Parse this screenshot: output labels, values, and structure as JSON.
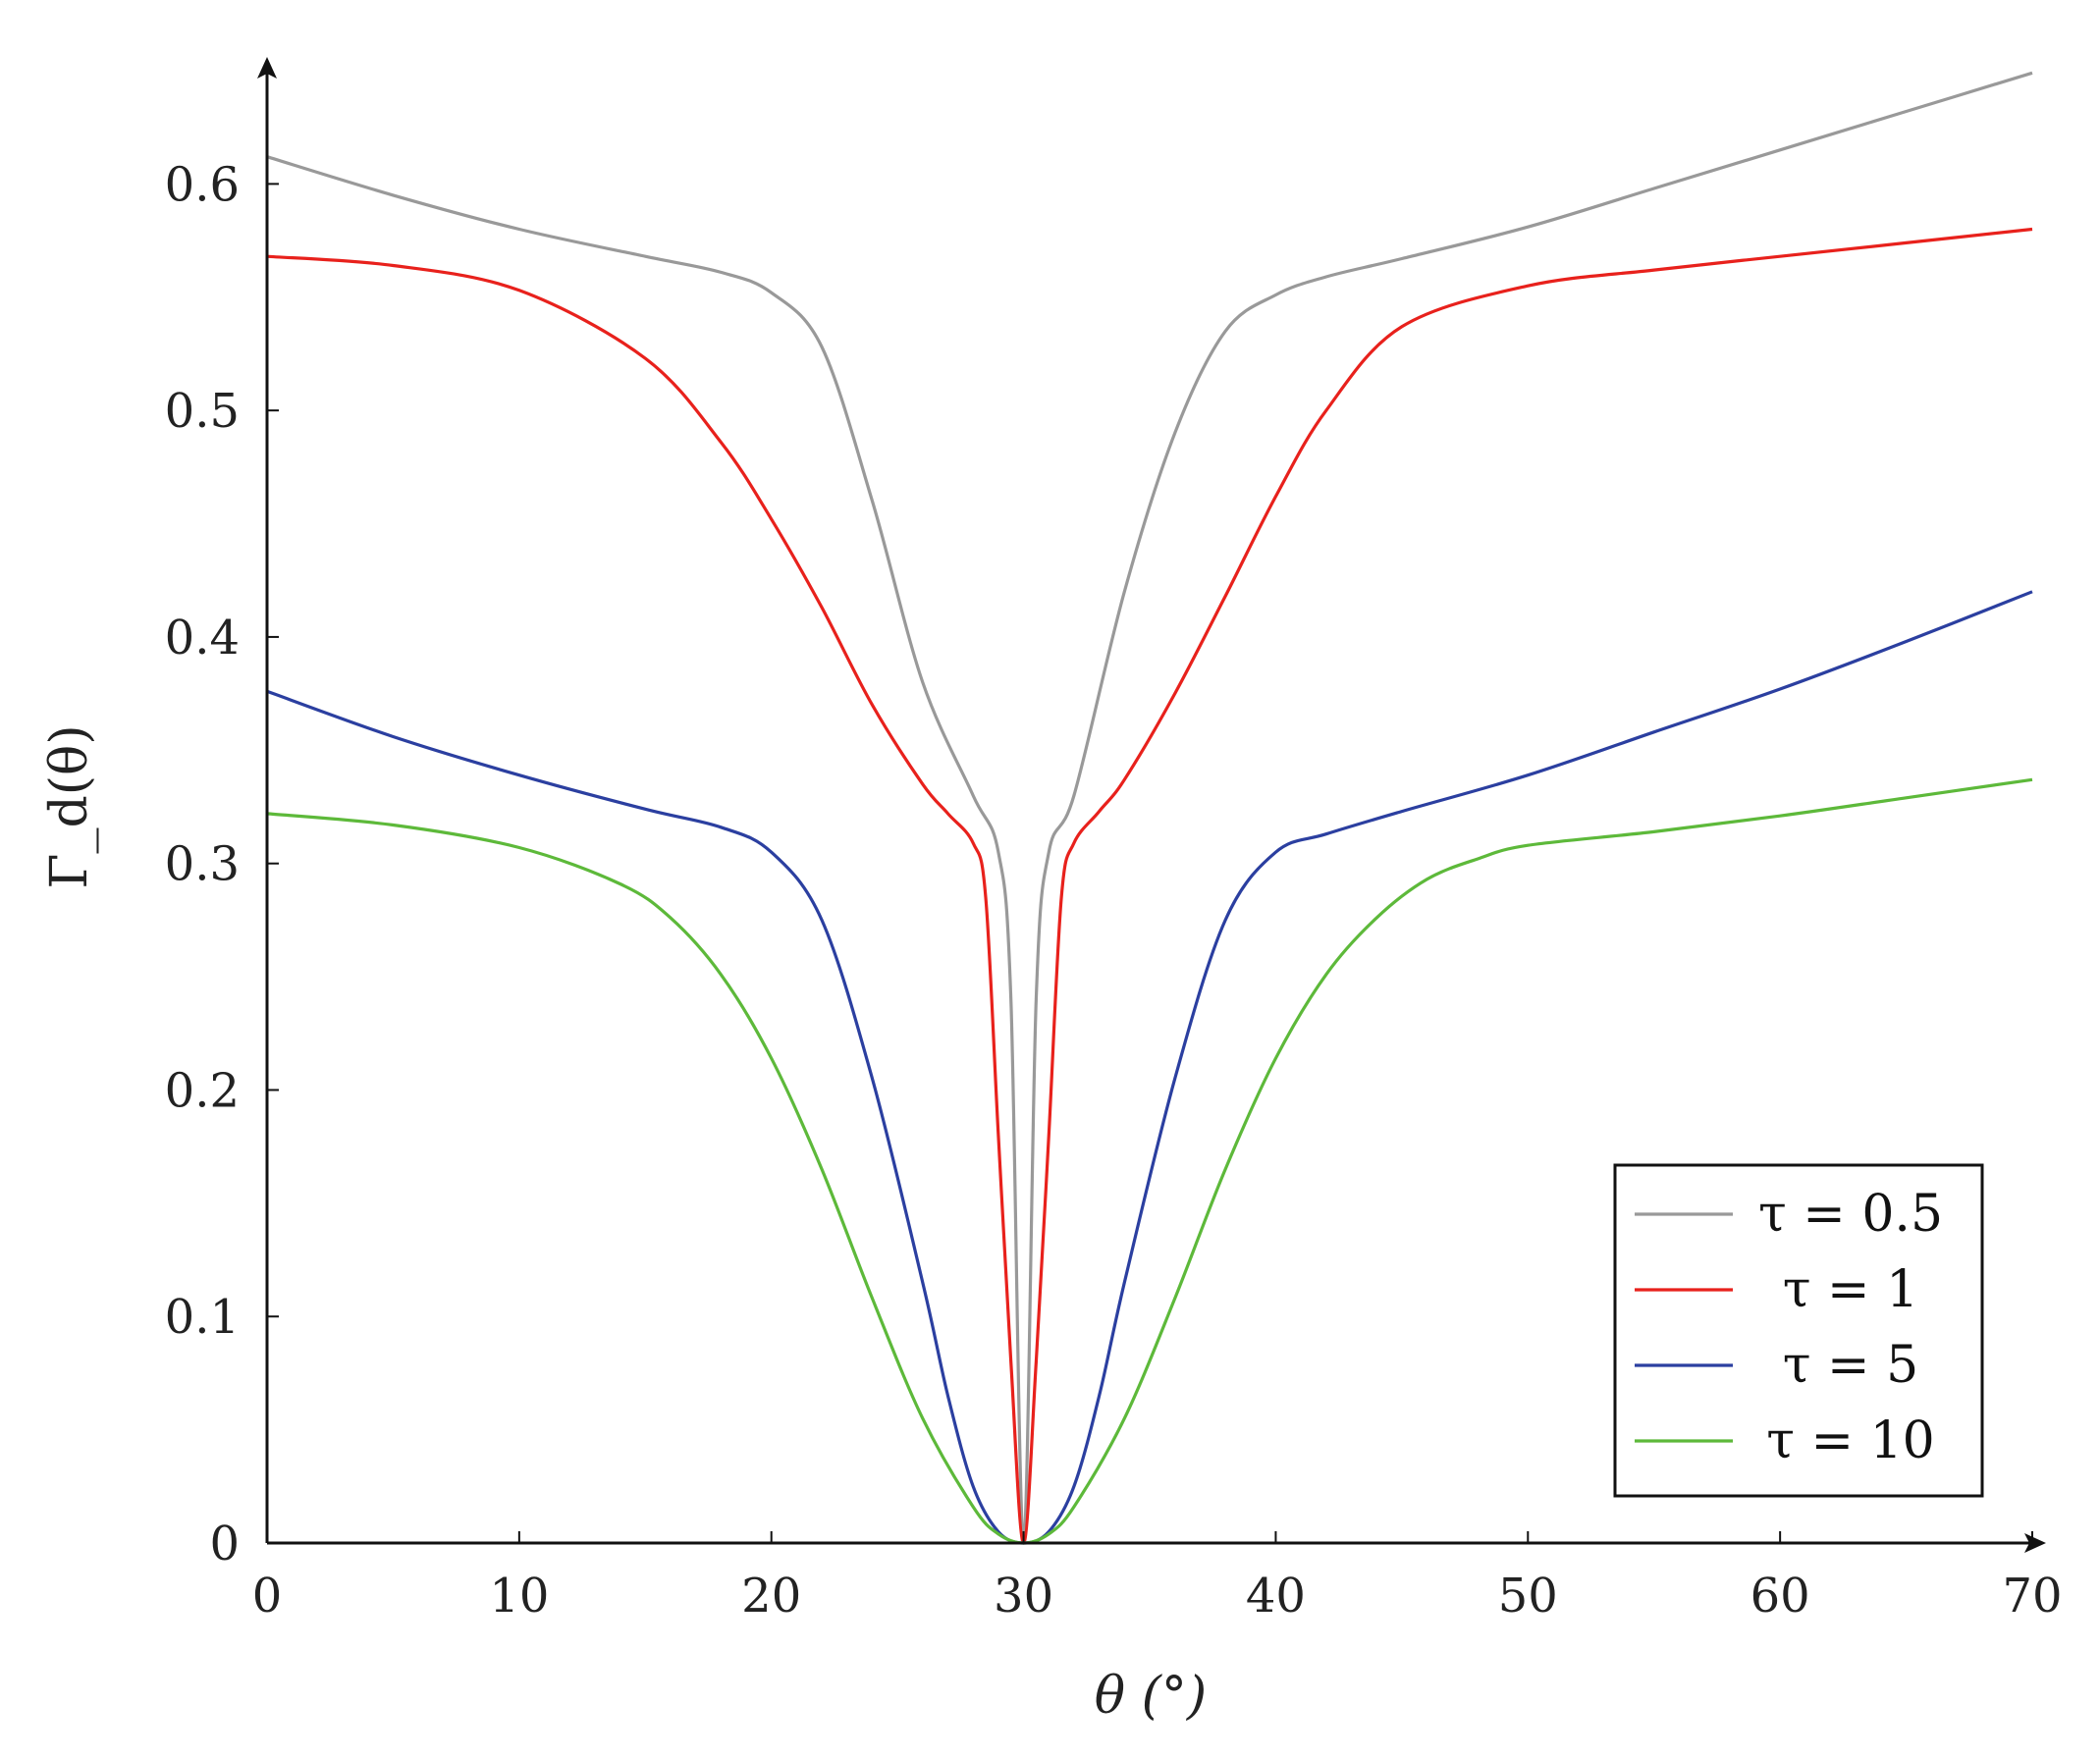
{
  "chart_data": {
    "type": "line",
    "title": "",
    "xlabel": "θ (°)",
    "ylabel": "Γ_d(θ)",
    "xlim": [
      0,
      70
    ],
    "ylim": [
      0,
      0.65
    ],
    "xticks": [
      0,
      10,
      20,
      30,
      40,
      50,
      60,
      70
    ],
    "xtick_labels": [
      "0",
      "10",
      "20",
      "30",
      "40",
      "50",
      "60",
      "70"
    ],
    "yticks": [
      0,
      0.1,
      0.2,
      0.3,
      0.4,
      0.5,
      0.6
    ],
    "ytick_labels": [
      "0",
      "0.1",
      "0.2",
      "0.3",
      "0.4",
      "0.5",
      "0.6"
    ],
    "grid": false,
    "legend_position": "bottom-right",
    "series": [
      {
        "name": "τ = 0.5",
        "color": "#999999",
        "x": [
          0,
          5,
          10,
          15,
          18,
          20,
          22,
          24,
          26,
          28,
          29,
          29.5,
          30,
          30.5,
          31,
          32,
          34,
          36,
          38,
          40,
          42,
          45,
          50,
          55,
          60,
          65,
          70
        ],
        "y": [
          0.612,
          0.595,
          0.58,
          0.568,
          0.561,
          0.552,
          0.528,
          0.46,
          0.38,
          0.33,
          0.305,
          0.24,
          0.0,
          0.24,
          0.305,
          0.33,
          0.42,
          0.49,
          0.535,
          0.551,
          0.559,
          0.567,
          0.581,
          0.598,
          0.615,
          0.632,
          0.649
        ]
      },
      {
        "name": "τ = 1",
        "color": "#e8211c",
        "x": [
          0,
          5,
          10,
          15,
          18,
          20,
          22,
          24,
          26,
          27,
          28,
          28.5,
          29,
          29.5,
          30,
          30.5,
          31,
          31.5,
          32,
          33,
          34,
          36,
          38,
          40,
          42,
          45,
          50,
          55,
          60,
          65,
          70
        ],
        "y": [
          0.568,
          0.564,
          0.553,
          0.523,
          0.486,
          0.452,
          0.413,
          0.37,
          0.335,
          0.322,
          0.309,
          0.285,
          0.18,
          0.08,
          0.0,
          0.08,
          0.18,
          0.285,
          0.309,
          0.323,
          0.337,
          0.375,
          0.418,
          0.462,
          0.5,
          0.537,
          0.555,
          0.562,
          0.568,
          0.574,
          0.58
        ]
      },
      {
        "name": "τ = 5",
        "color": "#2b3fa0",
        "x": [
          0,
          5,
          10,
          15,
          18,
          20,
          22,
          24,
          26,
          27,
          28,
          29,
          30,
          31,
          32,
          33,
          34,
          36,
          38,
          40,
          42,
          45,
          50,
          55,
          60,
          65,
          70
        ],
        "y": [
          0.376,
          0.356,
          0.339,
          0.324,
          0.316,
          0.305,
          0.275,
          0.205,
          0.115,
          0.065,
          0.025,
          0.005,
          0.0,
          0.005,
          0.025,
          0.065,
          0.115,
          0.205,
          0.275,
          0.305,
          0.313,
          0.323,
          0.339,
          0.358,
          0.377,
          0.398,
          0.42
        ]
      },
      {
        "name": "τ = 10",
        "color": "#5db93a",
        "x": [
          0,
          5,
          10,
          14,
          16,
          18,
          20,
          22,
          24,
          26,
          28,
          29,
          30,
          31,
          32,
          34,
          36,
          38,
          40,
          42,
          44,
          46,
          48,
          50,
          55,
          60,
          65,
          70
        ],
        "y": [
          0.322,
          0.317,
          0.307,
          0.291,
          0.276,
          0.251,
          0.214,
          0.165,
          0.108,
          0.055,
          0.016,
          0.004,
          0.0,
          0.004,
          0.016,
          0.055,
          0.108,
          0.165,
          0.214,
          0.251,
          0.276,
          0.293,
          0.302,
          0.308,
          0.314,
          0.321,
          0.329,
          0.337
        ]
      }
    ]
  }
}
